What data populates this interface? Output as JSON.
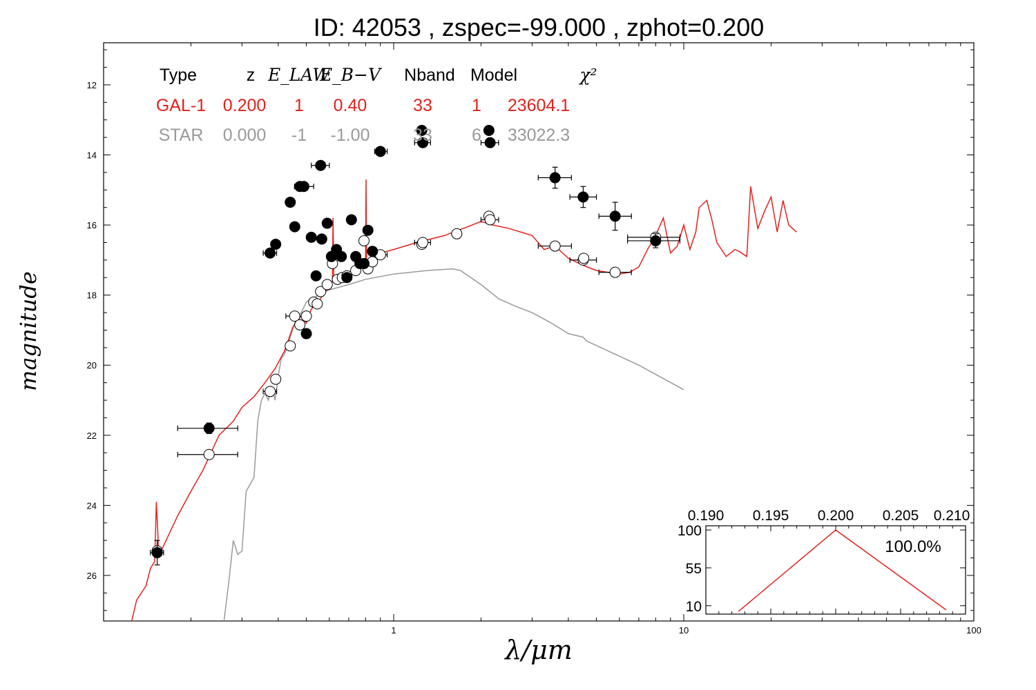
{
  "chart_data": {
    "type": "scatter",
    "title": "ID:  42053 , zspec=-99.000 , zphot=0.200",
    "xlabel": "λ/μm",
    "ylabel": "magnitude",
    "x_scale": "log",
    "xlim": [
      0.1,
      100
    ],
    "ylim": [
      27.3,
      10.8
    ],
    "y_inverted": true,
    "x_ticks": [
      "1",
      "10",
      "100"
    ],
    "y_ticks": [
      "12",
      "14",
      "16",
      "18",
      "20",
      "22",
      "24",
      "26"
    ],
    "fit_table": {
      "headers": [
        "Type",
        "z",
        "E_LAW",
        "E_B−V",
        "Nband",
        "Model",
        "χ²"
      ],
      "rows": [
        {
          "color": "#e3201b",
          "cells": [
            "GAL-1",
            "0.200",
            "1",
            "0.40",
            "33",
            "1",
            "23604.1"
          ]
        },
        {
          "color": "#999999",
          "cells": [
            "STAR",
            "0.000",
            "-1",
            "-1.00",
            "33",
            "6",
            "33022.3"
          ]
        }
      ]
    },
    "colors": {
      "galaxy_model": "#e3201b",
      "star_model": "#999999",
      "observed": "#000000",
      "model_mag": "#ffffff"
    },
    "observed_points": [
      {
        "x": 0.153,
        "y": 25.35,
        "xerr": [
          0.145,
          0.161
        ],
        "yerr": 0.35
      },
      {
        "x": 0.231,
        "y": 21.8,
        "xerr": [
          0.18,
          0.29
        ],
        "yerr": 0.15
      },
      {
        "x": 0.375,
        "y": 16.8,
        "xerr": [
          0.355,
          0.395
        ]
      },
      {
        "x": 0.392,
        "y": 16.55
      },
      {
        "x": 0.44,
        "y": 15.35
      },
      {
        "x": 0.456,
        "y": 16.05
      },
      {
        "x": 0.475,
        "y": 14.9
      },
      {
        "x": 0.49,
        "y": 14.9,
        "xerr": [
          0.455,
          0.53
        ]
      },
      {
        "x": 0.5,
        "y": 19.1
      },
      {
        "x": 0.52,
        "y": 16.35
      },
      {
        "x": 0.54,
        "y": 17.45
      },
      {
        "x": 0.56,
        "y": 14.3,
        "xerr": [
          0.52,
          0.6
        ]
      },
      {
        "x": 0.565,
        "y": 16.4
      },
      {
        "x": 0.59,
        "y": 15.95
      },
      {
        "x": 0.61,
        "y": 16.9
      },
      {
        "x": 0.635,
        "y": 16.7
      },
      {
        "x": 0.66,
        "y": 16.9
      },
      {
        "x": 0.69,
        "y": 17.5
      },
      {
        "x": 0.715,
        "y": 15.85
      },
      {
        "x": 0.74,
        "y": 16.9
      },
      {
        "x": 0.765,
        "y": 17.1
      },
      {
        "x": 0.79,
        "y": 17.1
      },
      {
        "x": 0.815,
        "y": 16.15
      },
      {
        "x": 0.845,
        "y": 16.75
      },
      {
        "x": 0.9,
        "y": 13.9,
        "xerr": [
          0.86,
          0.95
        ]
      },
      {
        "x": 1.25,
        "y": 13.3
      },
      {
        "x": 1.26,
        "y": 13.65,
        "xerr": [
          1.18,
          1.34
        ]
      },
      {
        "x": 2.13,
        "y": 13.3
      },
      {
        "x": 2.15,
        "y": 13.65,
        "xerr": [
          2.0,
          2.3
        ]
      },
      {
        "x": 3.6,
        "y": 14.65,
        "xerr": [
          3.15,
          4.1
        ],
        "yerr": 0.3
      },
      {
        "x": 4.5,
        "y": 15.2,
        "xerr": [
          4.05,
          5.0
        ],
        "yerr": 0.3
      },
      {
        "x": 5.8,
        "y": 15.75,
        "xerr": [
          5.1,
          6.6
        ],
        "yerr": 0.4
      },
      {
        "x": 8.0,
        "y": 16.45,
        "xerr": [
          6.4,
          9.7
        ],
        "yerr": 0.2
      }
    ],
    "model_points": [
      {
        "x": 0.153,
        "y": 25.3
      },
      {
        "x": 0.231,
        "y": 22.55,
        "xerr": [
          0.18,
          0.29
        ]
      },
      {
        "x": 0.375,
        "y": 20.75,
        "xerr": [
          0.355,
          0.395
        ]
      },
      {
        "x": 0.392,
        "y": 20.4
      },
      {
        "x": 0.44,
        "y": 19.45
      },
      {
        "x": 0.456,
        "y": 18.6,
        "xerr": [
          0.425,
          0.49
        ]
      },
      {
        "x": 0.475,
        "y": 18.85
      },
      {
        "x": 0.5,
        "y": 18.6
      },
      {
        "x": 0.53,
        "y": 18.2
      },
      {
        "x": 0.545,
        "y": 18.25
      },
      {
        "x": 0.56,
        "y": 17.9
      },
      {
        "x": 0.59,
        "y": 17.7
      },
      {
        "x": 0.615,
        "y": 17.1
      },
      {
        "x": 0.64,
        "y": 17.55
      },
      {
        "x": 0.665,
        "y": 17.5
      },
      {
        "x": 0.69,
        "y": 17.45
      },
      {
        "x": 0.74,
        "y": 17.3
      },
      {
        "x": 0.79,
        "y": 16.45
      },
      {
        "x": 0.815,
        "y": 17.25
      },
      {
        "x": 0.845,
        "y": 17.05
      },
      {
        "x": 0.9,
        "y": 16.85,
        "xerr": [
          0.86,
          0.95
        ]
      },
      {
        "x": 1.25,
        "y": 16.55
      },
      {
        "x": 1.26,
        "y": 16.5,
        "xerr": [
          1.18,
          1.34
        ]
      },
      {
        "x": 1.65,
        "y": 16.25
      },
      {
        "x": 2.13,
        "y": 15.75
      },
      {
        "x": 2.15,
        "y": 15.85,
        "xerr": [
          2.0,
          2.3
        ]
      },
      {
        "x": 3.6,
        "y": 16.6,
        "xerr": [
          3.15,
          4.1
        ]
      },
      {
        "x": 4.5,
        "y": 17.0,
        "xerr": [
          4.05,
          5.0
        ]
      },
      {
        "x": 4.52,
        "y": 16.95
      },
      {
        "x": 5.8,
        "y": 17.35,
        "xerr": [
          5.1,
          6.6
        ]
      },
      {
        "x": 8.0,
        "y": 16.35,
        "xerr": [
          6.4,
          9.7
        ]
      }
    ],
    "galaxy_model_curve": {
      "x": [
        0.125,
        0.13,
        0.14,
        0.145,
        0.15,
        0.152,
        0.155,
        0.16,
        0.18,
        0.2,
        0.22,
        0.25,
        0.28,
        0.3,
        0.33,
        0.36,
        0.39,
        0.42,
        0.45,
        0.48,
        0.5,
        0.52,
        0.55,
        0.58,
        0.6,
        0.615,
        0.618,
        0.622,
        0.65,
        0.7,
        0.75,
        0.8,
        0.803,
        0.806,
        0.85,
        0.9,
        1.0,
        1.2,
        1.5,
        1.8,
        2.0,
        2.2,
        2.5,
        3.0,
        3.3,
        3.6,
        4.0,
        4.5,
        5.0,
        5.5,
        6.0,
        6.5,
        7.0,
        7.5,
        8.0,
        8.5,
        9.0,
        9.5,
        10.0,
        10.5,
        11.0,
        11.3,
        12.0,
        12.5,
        13.0,
        14.0,
        15.0,
        15.5,
        16.5,
        17.0,
        18.0,
        19.0,
        20.0,
        21.0,
        22.0,
        23.0,
        24.5
      ],
      "y": [
        27.3,
        26.7,
        26.3,
        25.8,
        25.6,
        23.9,
        25.4,
        25.2,
        24.3,
        23.6,
        23.0,
        22.0,
        21.6,
        21.2,
        20.9,
        20.5,
        20.1,
        19.6,
        18.9,
        18.6,
        18.8,
        18.4,
        18.2,
        17.9,
        17.8,
        17.6,
        15.8,
        17.6,
        17.5,
        17.4,
        17.2,
        17.0,
        14.7,
        17.0,
        16.9,
        16.8,
        16.7,
        16.5,
        16.3,
        16.05,
        15.9,
        16.0,
        16.1,
        16.3,
        16.7,
        16.6,
        16.95,
        17.15,
        17.3,
        17.35,
        17.4,
        17.35,
        17.2,
        16.7,
        16.3,
        15.8,
        16.8,
        16.6,
        16.0,
        16.7,
        16.2,
        15.5,
        15.3,
        15.85,
        16.5,
        16.9,
        16.7,
        16.75,
        16.9,
        14.9,
        16.1,
        15.6,
        15.2,
        16.2,
        15.3,
        16.0,
        16.2
      ]
    },
    "star_model_curve": {
      "x": [
        0.26,
        0.27,
        0.28,
        0.29,
        0.3,
        0.31,
        0.33,
        0.34,
        0.35,
        0.36,
        0.37,
        0.38,
        0.39,
        0.4,
        0.41,
        0.42,
        0.44,
        0.46,
        0.48,
        0.5,
        0.55,
        0.6,
        0.7,
        0.8,
        1.0,
        1.3,
        1.6,
        1.7,
        2.0,
        2.3,
        2.6,
        3.0,
        3.5,
        4.0,
        4.5,
        4.6,
        5.5,
        7.0,
        10.0
      ],
      "y": [
        27.3,
        26.2,
        25.0,
        25.4,
        25.3,
        23.6,
        23.2,
        21.6,
        21.0,
        20.8,
        21.0,
        20.6,
        21.0,
        20.3,
        19.8,
        19.7,
        19.2,
        18.7,
        18.5,
        18.2,
        18.0,
        17.85,
        17.7,
        17.55,
        17.4,
        17.3,
        17.25,
        17.3,
        17.7,
        18.1,
        18.3,
        18.5,
        18.8,
        19.1,
        19.2,
        19.3,
        19.6,
        20.0,
        20.7
      ]
    },
    "inset": {
      "x_ticks": [
        "0.190",
        "0.195",
        "0.200",
        "0.205",
        "0.210"
      ],
      "y_ticks": [
        "100",
        "55",
        "10"
      ],
      "xlim": [
        0.19,
        0.21
      ],
      "ylim": [
        0,
        105
      ],
      "label": "100.0%",
      "curve": {
        "x": [
          0.1925,
          0.2,
          0.2085
        ],
        "y": [
          3,
          100,
          5
        ]
      }
    }
  }
}
